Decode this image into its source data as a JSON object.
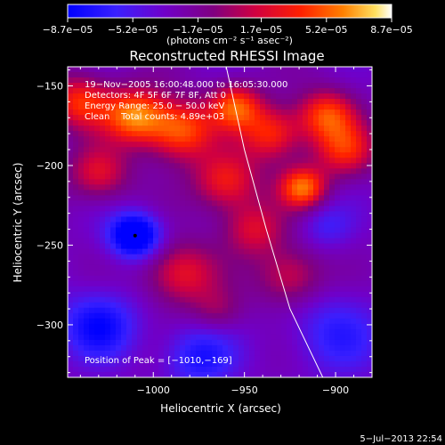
{
  "chart_data": {
    "type": "heatmap",
    "title": "Reconstructed RHESSI Image",
    "xlabel": "Heliocentric X (arcsec)",
    "ylabel": "Heliocentric Y (arcsec)",
    "x_ticks": [
      -1000,
      -950,
      -900
    ],
    "x_tick_labels": [
      "−1000",
      "−950",
      "−900"
    ],
    "y_ticks": [
      -150,
      -200,
      -250,
      -300
    ],
    "y_tick_labels": [
      "−150",
      "−200",
      "−250",
      "−300"
    ],
    "xlim": [
      -1047,
      -880
    ],
    "ylim": [
      -333,
      -138
    ],
    "colorbar": {
      "ticks": [
        -8.7e-05,
        -5.2e-05,
        -1.7e-05,
        1.7e-05,
        5.2e-05,
        8.7e-05
      ],
      "tick_labels": [
        "−8.7e−05",
        "−5.2e−05",
        "−1.7e−05",
        "1.7e−05",
        "5.2e−05",
        "8.7e−05"
      ],
      "range": [
        -8.7e-05,
        8.7e-05
      ],
      "units_label": "(photons cm⁻² s⁻¹ asec⁻²)"
    },
    "info_lines": [
      "19−Nov−2005 16:00:48.000 to 16:05:30.000",
      "Detectors: 4F 5F 6F 7F 8F, Att 0",
      "Energy Range: 25.0 − 50.0 keV",
      "Clean    Total counts: 4.89e+03"
    ],
    "peak_label": "Position of Peak = [−1010,−169]",
    "peak_position": [
      -1010,
      -169
    ],
    "limb_curve": [
      [
        -960,
        -138
      ],
      [
        -950,
        -190
      ],
      [
        -938,
        -240
      ],
      [
        -925,
        -290
      ],
      [
        -907,
        -333
      ]
    ],
    "marker_position": [
      -1010,
      -244
    ],
    "sources": [
      {
        "x": -1010,
        "y": -169,
        "s": 12,
        "a": 1.0
      },
      {
        "x": -985,
        "y": -178,
        "s": 13,
        "a": 0.9
      },
      {
        "x": -955,
        "y": -163,
        "s": 10,
        "a": 0.85
      },
      {
        "x": -935,
        "y": -180,
        "s": 12,
        "a": 0.75
      },
      {
        "x": -905,
        "y": -168,
        "s": 11,
        "a": 0.8
      },
      {
        "x": -895,
        "y": -190,
        "s": 12,
        "a": 0.7
      },
      {
        "x": -1040,
        "y": -160,
        "s": 12,
        "a": 0.75
      },
      {
        "x": -1030,
        "y": -205,
        "s": 12,
        "a": 0.6
      },
      {
        "x": -960,
        "y": -210,
        "s": 13,
        "a": 0.7
      },
      {
        "x": -918,
        "y": -214,
        "s": 9,
        "a": 0.95
      },
      {
        "x": -945,
        "y": -240,
        "s": 12,
        "a": 0.55
      },
      {
        "x": -985,
        "y": -268,
        "s": 14,
        "a": 0.65
      },
      {
        "x": -925,
        "y": -270,
        "s": 13,
        "a": 0.55
      },
      {
        "x": -965,
        "y": -292,
        "s": 10,
        "a": 0.3
      },
      {
        "x": -1010,
        "y": -244,
        "s": 10,
        "a": -1.0
      },
      {
        "x": -1030,
        "y": -300,
        "s": 15,
        "a": -0.6
      },
      {
        "x": -975,
        "y": -320,
        "s": 14,
        "a": -0.5
      },
      {
        "x": -900,
        "y": -305,
        "s": 18,
        "a": -0.4
      },
      {
        "x": -905,
        "y": -238,
        "s": 10,
        "a": -0.3
      }
    ]
  }
}
